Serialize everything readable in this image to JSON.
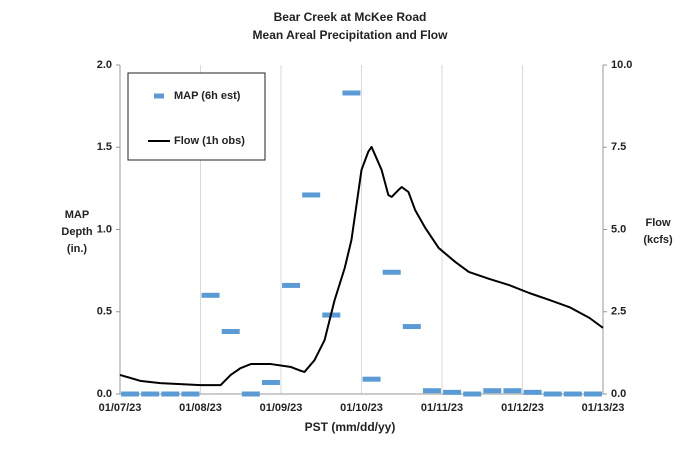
{
  "chart_data": {
    "type": "line",
    "title": "Bear Creek at McKee Road",
    "subtitle": "Mean Areal Precipitation and Flow",
    "x_label": "PST (mm/dd/yy)",
    "y_label": [
      "MAP",
      "Depth",
      "(in.)"
    ],
    "y2_label": [
      "Flow",
      "(kcfs)"
    ],
    "xlim": [
      0,
      144
    ],
    "xticks": [
      {
        "value": 0,
        "label": "01/07/23"
      },
      {
        "value": 24,
        "label": "01/08/23"
      },
      {
        "value": 48,
        "label": "01/09/23"
      },
      {
        "value": 72,
        "label": "01/10/23"
      },
      {
        "value": 96,
        "label": "01/11/23"
      },
      {
        "value": 120,
        "label": "01/12/23"
      },
      {
        "value": 144,
        "label": "01/13/23"
      }
    ],
    "ylim": [
      0,
      2
    ],
    "yticks": [
      {
        "value": 0,
        "label": "0.0"
      },
      {
        "value": 0.5,
        "label": "0.5"
      },
      {
        "value": 1,
        "label": "1.0"
      },
      {
        "value": 1.5,
        "label": "1.5"
      },
      {
        "value": 2,
        "label": "2.0"
      }
    ],
    "y2lim": [
      0,
      10
    ],
    "y2ticks": [
      {
        "value": 0,
        "label": "0.0"
      },
      {
        "value": 2.5,
        "label": "2.5"
      },
      {
        "value": 5,
        "label": "5.0"
      },
      {
        "value": 7.5,
        "label": "7.5"
      },
      {
        "value": 10,
        "label": "10.0"
      }
    ],
    "grid": true,
    "legend": "upper left",
    "series": [
      {
        "name": "MAP (6h est)",
        "type": "dash",
        "color": "#5b9bd5",
        "x": [
          3,
          9,
          15,
          21,
          27,
          33,
          39,
          45,
          51,
          57,
          63,
          69,
          75,
          81,
          87,
          93,
          99,
          105,
          111,
          117,
          123,
          129,
          135,
          141
        ],
        "values": [
          0,
          0,
          0,
          0,
          0.6,
          0.38,
          0,
          0.07,
          0.66,
          1.21,
          0.48,
          1.83,
          0.09,
          0.74,
          0.41,
          0.02,
          0.01,
          0,
          0.02,
          0.02,
          0.01,
          0,
          0,
          0
        ]
      },
      {
        "name": "Flow (1h obs)",
        "type": "line",
        "color": "#000000",
        "axis": "y2",
        "x": [
          0,
          6,
          12,
          24,
          30,
          33,
          36,
          39,
          45,
          51,
          54,
          55,
          58,
          61,
          64,
          67,
          69,
          72,
          74,
          75,
          78,
          80,
          81,
          83,
          84,
          86,
          88,
          91,
          95,
          100,
          104,
          110,
          116,
          122,
          128,
          134,
          140,
          144
        ],
        "values": [
          0.58,
          0.4,
          0.33,
          0.27,
          0.27,
          0.58,
          0.79,
          0.91,
          0.91,
          0.82,
          0.7,
          0.67,
          1.03,
          1.64,
          2.86,
          3.83,
          4.68,
          6.81,
          7.36,
          7.51,
          6.81,
          6.05,
          5.99,
          6.2,
          6.29,
          6.14,
          5.59,
          5.05,
          4.44,
          4.01,
          3.71,
          3.5,
          3.31,
          3.07,
          2.86,
          2.64,
          2.31,
          2.01
        ]
      }
    ]
  }
}
